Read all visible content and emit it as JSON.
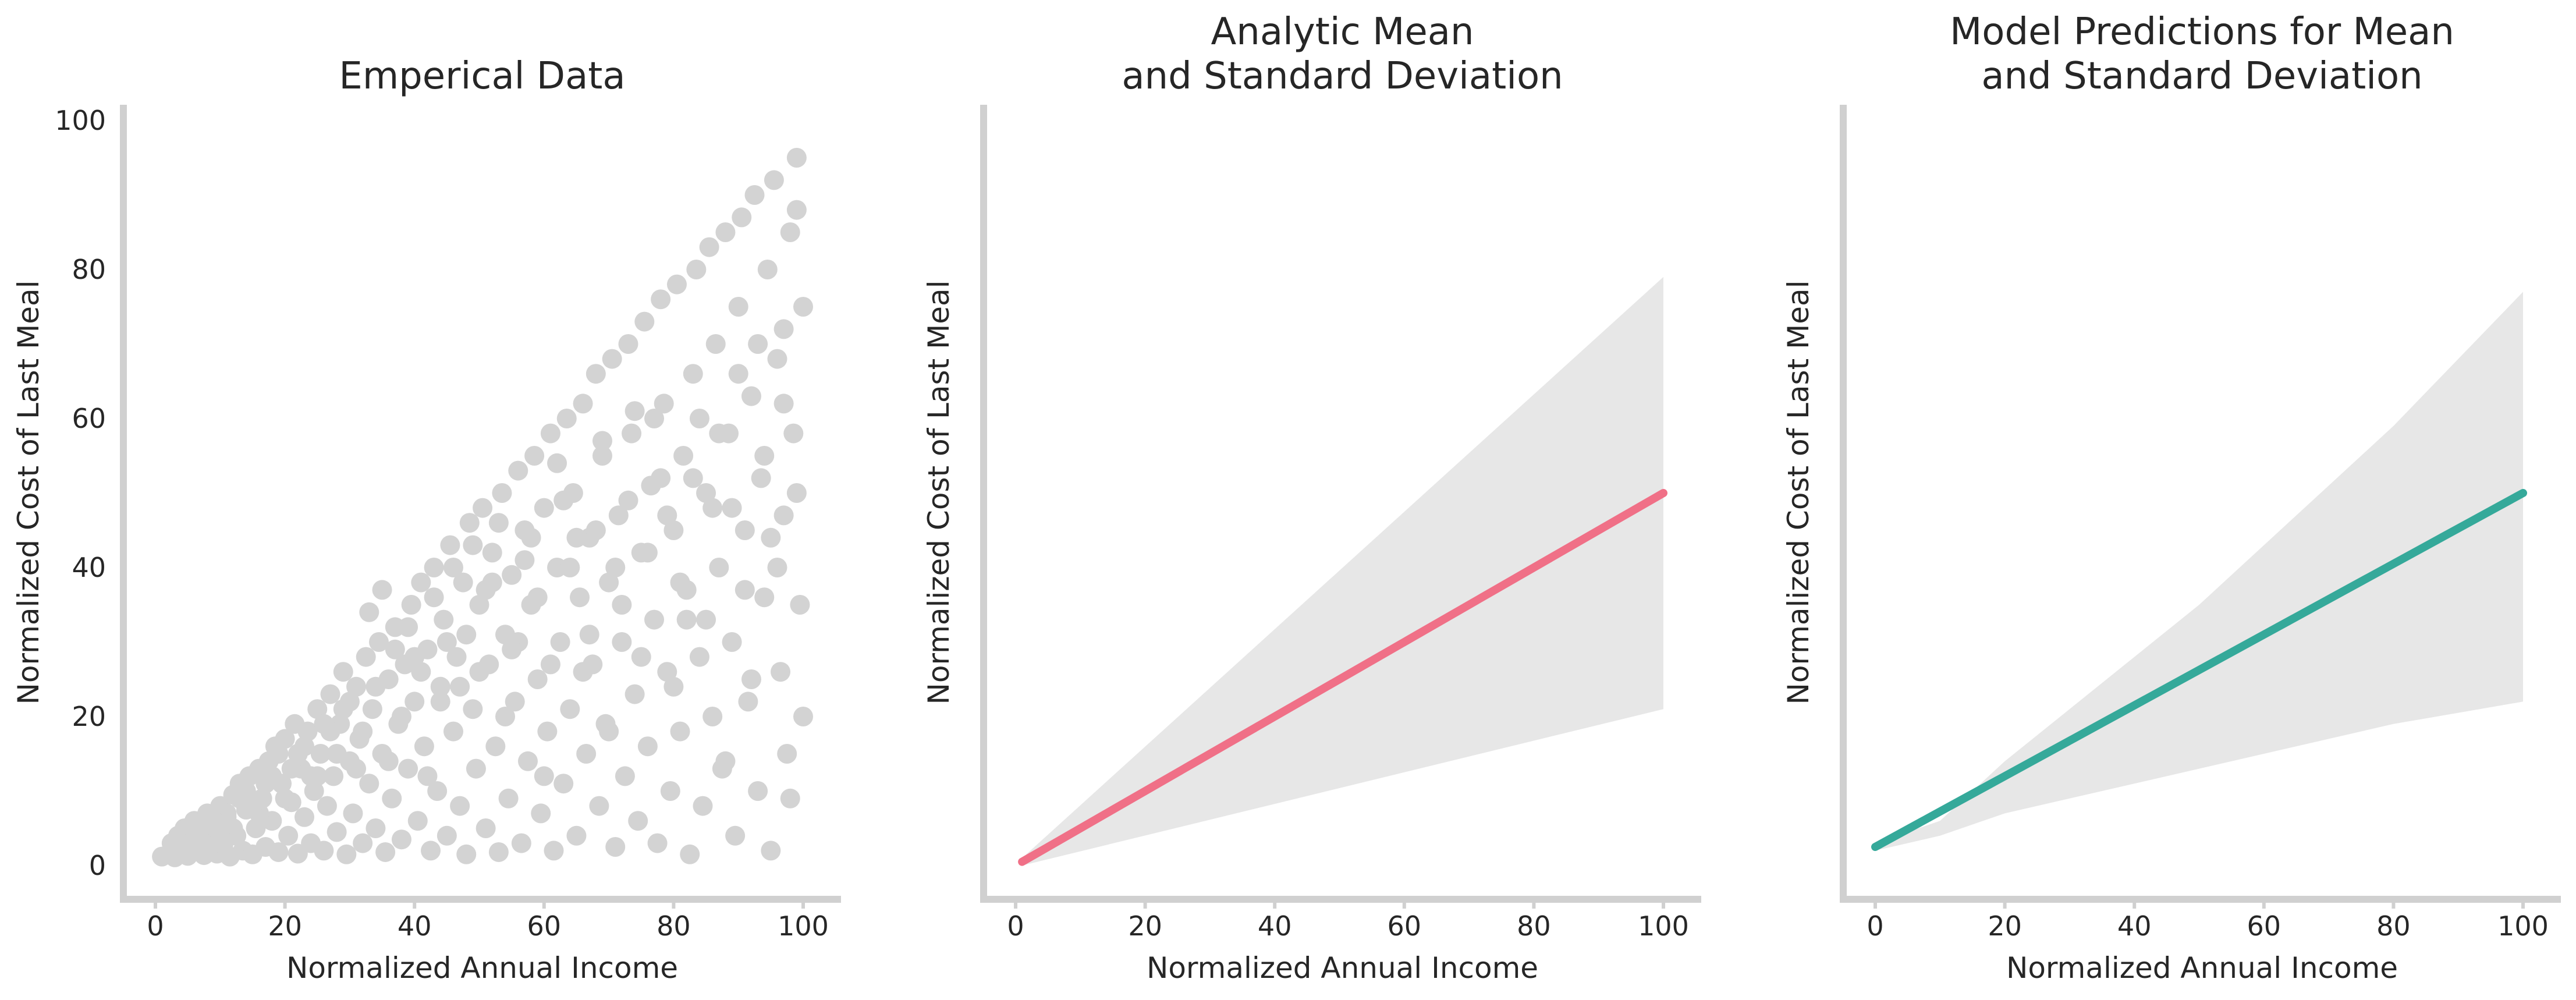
{
  "colors": {
    "scatter": "#d3d3d3",
    "band": "#e7e7e7",
    "analytic_mean": "#f07087",
    "model_mean": "#35a99a",
    "spine": "#d0d0d0"
  },
  "chart_data": [
    {
      "type": "scatter",
      "title": [
        "Emperical Data"
      ],
      "xlabel": "Normalized Annual Income",
      "ylabel": "Normalized Cost of Last Meal",
      "xlim": [
        -5,
        105
      ],
      "ylim": [
        -5,
        102
      ],
      "xticks": [
        0,
        20,
        40,
        60,
        80,
        100
      ],
      "yticks": [
        0,
        20,
        40,
        60,
        80,
        100
      ],
      "grid": false,
      "points": [
        [
          1,
          1.2
        ],
        [
          2,
          1.5
        ],
        [
          2.5,
          3
        ],
        [
          3,
          1.1
        ],
        [
          3.5,
          4
        ],
        [
          4,
          2
        ],
        [
          4.5,
          5
        ],
        [
          5,
          1.3
        ],
        [
          5.5,
          3.5
        ],
        [
          6,
          6
        ],
        [
          6.5,
          2.2
        ],
        [
          7,
          4.5
        ],
        [
          7.5,
          1.4
        ],
        [
          8,
          7
        ],
        [
          8.5,
          3
        ],
        [
          9,
          5.5
        ],
        [
          9.5,
          1.6
        ],
        [
          10,
          8
        ],
        [
          10.5,
          2.8
        ],
        [
          11,
          6.5
        ],
        [
          11.5,
          1.2
        ],
        [
          12,
          9.5
        ],
        [
          12.5,
          4
        ],
        [
          13,
          11
        ],
        [
          13.5,
          2
        ],
        [
          14,
          7.5
        ],
        [
          14.5,
          12
        ],
        [
          15,
          1.5
        ],
        [
          15.5,
          5
        ],
        [
          16,
          13
        ],
        [
          16.5,
          9
        ],
        [
          17,
          2.5
        ],
        [
          17.5,
          14
        ],
        [
          18,
          6
        ],
        [
          18.5,
          16
        ],
        [
          19,
          1.8
        ],
        [
          19.5,
          11
        ],
        [
          20,
          17
        ],
        [
          20.5,
          4
        ],
        [
          21,
          8.5
        ],
        [
          21.5,
          19
        ],
        [
          22,
          1.6
        ],
        [
          22.5,
          13
        ],
        [
          23,
          6.5
        ],
        [
          23.5,
          18
        ],
        [
          24,
          3
        ],
        [
          24.5,
          10
        ],
        [
          25,
          21
        ],
        [
          25.5,
          15
        ],
        [
          26,
          2
        ],
        [
          26.5,
          8
        ],
        [
          27,
          23
        ],
        [
          27.5,
          12
        ],
        [
          28,
          4.5
        ],
        [
          28.5,
          19
        ],
        [
          29,
          26
        ],
        [
          29.5,
          1.5
        ],
        [
          30,
          14
        ],
        [
          30.5,
          7
        ],
        [
          31,
          24
        ],
        [
          31.5,
          17
        ],
        [
          32,
          3
        ],
        [
          32.5,
          28
        ],
        [
          33,
          11
        ],
        [
          33.5,
          21
        ],
        [
          34,
          5
        ],
        [
          34.5,
          30
        ],
        [
          35,
          15
        ],
        [
          35.5,
          1.8
        ],
        [
          36,
          25
        ],
        [
          36.5,
          9
        ],
        [
          37,
          32
        ],
        [
          37.5,
          19
        ],
        [
          38,
          3.5
        ],
        [
          38.5,
          27
        ],
        [
          39,
          13
        ],
        [
          39.5,
          35
        ],
        [
          40,
          22
        ],
        [
          40.5,
          6
        ],
        [
          41,
          38
        ],
        [
          41.5,
          16
        ],
        [
          42,
          29
        ],
        [
          42.5,
          2
        ],
        [
          43,
          40
        ],
        [
          43.5,
          10
        ],
        [
          44,
          24
        ],
        [
          44.5,
          33
        ],
        [
          45,
          4
        ],
        [
          45.5,
          43
        ],
        [
          46,
          18
        ],
        [
          46.5,
          28
        ],
        [
          47,
          8
        ],
        [
          47.5,
          38
        ],
        [
          48,
          1.5
        ],
        [
          48.5,
          46
        ],
        [
          49,
          21
        ],
        [
          49.5,
          13
        ],
        [
          50,
          35
        ],
        [
          50.5,
          48
        ],
        [
          51,
          5
        ],
        [
          51.5,
          27
        ],
        [
          52,
          42
        ],
        [
          52.5,
          16
        ],
        [
          53,
          1.8
        ],
        [
          53.5,
          50
        ],
        [
          54,
          31
        ],
        [
          54.5,
          9
        ],
        [
          55,
          39
        ],
        [
          55.5,
          22
        ],
        [
          56,
          53
        ],
        [
          56.5,
          3
        ],
        [
          57,
          45
        ],
        [
          57.5,
          14
        ],
        [
          58,
          35
        ],
        [
          58.5,
          55
        ],
        [
          59,
          25
        ],
        [
          59.5,
          7
        ],
        [
          60,
          48
        ],
        [
          60.5,
          18
        ],
        [
          61,
          58
        ],
        [
          61.5,
          2
        ],
        [
          62,
          40
        ],
        [
          62.5,
          30
        ],
        [
          63,
          11
        ],
        [
          63.5,
          60
        ],
        [
          64,
          21
        ],
        [
          64.5,
          50
        ],
        [
          65,
          4
        ],
        [
          65.5,
          36
        ],
        [
          66,
          62
        ],
        [
          66.5,
          15
        ],
        [
          67,
          44
        ],
        [
          67.5,
          27
        ],
        [
          68,
          66
        ],
        [
          68.5,
          8
        ],
        [
          69,
          55
        ],
        [
          69.5,
          19
        ],
        [
          70,
          38
        ],
        [
          70.5,
          68
        ],
        [
          71,
          2.5
        ],
        [
          71.5,
          47
        ],
        [
          72,
          30
        ],
        [
          72.5,
          12
        ],
        [
          73,
          70
        ],
        [
          73.5,
          58
        ],
        [
          74,
          23
        ],
        [
          74.5,
          6
        ],
        [
          75,
          42
        ],
        [
          75.5,
          73
        ],
        [
          76,
          16
        ],
        [
          76.5,
          51
        ],
        [
          77,
          33
        ],
        [
          77.5,
          3
        ],
        [
          78,
          76
        ],
        [
          78.5,
          62
        ],
        [
          79,
          26
        ],
        [
          79.5,
          10
        ],
        [
          80,
          45
        ],
        [
          80.5,
          78
        ],
        [
          81,
          18
        ],
        [
          81.5,
          55
        ],
        [
          82,
          37
        ],
        [
          82.5,
          1.5
        ],
        [
          83,
          66
        ],
        [
          83.5,
          80
        ],
        [
          84,
          28
        ],
        [
          84.5,
          8
        ],
        [
          85,
          50
        ],
        [
          85.5,
          83
        ],
        [
          86,
          20
        ],
        [
          86.5,
          70
        ],
        [
          87,
          40
        ],
        [
          87.5,
          13
        ],
        [
          88,
          85
        ],
        [
          88.5,
          58
        ],
        [
          89,
          30
        ],
        [
          89.5,
          4
        ],
        [
          90,
          75
        ],
        [
          90.5,
          87
        ],
        [
          91,
          45
        ],
        [
          91.5,
          22
        ],
        [
          92,
          63
        ],
        [
          92.5,
          90
        ],
        [
          93,
          10
        ],
        [
          93.5,
          52
        ],
        [
          94,
          36
        ],
        [
          94.5,
          80
        ],
        [
          95,
          2
        ],
        [
          95.5,
          92
        ],
        [
          96,
          68
        ],
        [
          96.5,
          26
        ],
        [
          97,
          47
        ],
        [
          97.5,
          15
        ],
        [
          98,
          85
        ],
        [
          98.5,
          58
        ],
        [
          99,
          95
        ],
        [
          99.5,
          35
        ],
        [
          100,
          75
        ],
        [
          100,
          20
        ],
        [
          99,
          88
        ],
        [
          98,
          9
        ],
        [
          97,
          62
        ],
        [
          96,
          40
        ],
        [
          94,
          55
        ],
        [
          92,
          25
        ],
        [
          90,
          66
        ],
        [
          88,
          14
        ],
        [
          86,
          48
        ],
        [
          84,
          60
        ],
        [
          82,
          33
        ],
        [
          80,
          24
        ],
        [
          78,
          52
        ],
        [
          76,
          42
        ],
        [
          74,
          61
        ],
        [
          72,
          35
        ],
        [
          70,
          18
        ],
        [
          68,
          45
        ],
        [
          66,
          26
        ],
        [
          64,
          40
        ],
        [
          62,
          54
        ],
        [
          60,
          12
        ],
        [
          58,
          44
        ],
        [
          56,
          30
        ],
        [
          54,
          20
        ],
        [
          52,
          38
        ],
        [
          50,
          26
        ],
        [
          48,
          31
        ],
        [
          46,
          40
        ],
        [
          44,
          22
        ],
        [
          42,
          12
        ],
        [
          40,
          28
        ],
        [
          38,
          20
        ],
        [
          36,
          14
        ],
        [
          34,
          24
        ],
        [
          32,
          18
        ],
        [
          30,
          22
        ],
        [
          28,
          15
        ],
        [
          26,
          19
        ],
        [
          24,
          12
        ],
        [
          22,
          15
        ],
        [
          20,
          9
        ],
        [
          18,
          12
        ],
        [
          16,
          7
        ],
        [
          14,
          10
        ],
        [
          12,
          5
        ],
        [
          10,
          4
        ],
        [
          8,
          5.5
        ],
        [
          6,
          3.5
        ],
        [
          4,
          3
        ],
        [
          33,
          34
        ],
        [
          35,
          37
        ],
        [
          37,
          29
        ],
        [
          39,
          32
        ],
        [
          41,
          26
        ],
        [
          43,
          36
        ],
        [
          45,
          30
        ],
        [
          47,
          24
        ],
        [
          49,
          43
        ],
        [
          51,
          37
        ],
        [
          53,
          46
        ],
        [
          55,
          29
        ],
        [
          57,
          41
        ],
        [
          59,
          36
        ],
        [
          61,
          27
        ],
        [
          63,
          49
        ],
        [
          65,
          44
        ],
        [
          67,
          31
        ],
        [
          69,
          57
        ],
        [
          71,
          40
        ],
        [
          73,
          49
        ],
        [
          75,
          28
        ],
        [
          77,
          60
        ],
        [
          79,
          47
        ],
        [
          81,
          38
        ],
        [
          83,
          52
        ],
        [
          85,
          33
        ],
        [
          87,
          58
        ],
        [
          89,
          48
        ],
        [
          91,
          37
        ],
        [
          93,
          70
        ],
        [
          95,
          44
        ],
        [
          97,
          72
        ],
        [
          99,
          50
        ],
        [
          21,
          13
        ],
        [
          23,
          16
        ],
        [
          25,
          12
        ],
        [
          27,
          18
        ],
        [
          29,
          21
        ],
        [
          31,
          13
        ],
        [
          19,
          15
        ],
        [
          17,
          11
        ],
        [
          15,
          8
        ],
        [
          13,
          9
        ],
        [
          11,
          7
        ],
        [
          9,
          6
        ]
      ]
    },
    {
      "type": "line",
      "title": [
        "Analytic Mean",
        "and Standard Deviation"
      ],
      "xlabel": "Normalized Annual Income",
      "ylabel": "Normalized Cost of Last Meal",
      "xlim": [
        -5,
        105
      ],
      "ylim": [
        -5,
        102
      ],
      "xticks": [
        0,
        20,
        40,
        60,
        80,
        100
      ],
      "yticks": [],
      "grid": false,
      "series": [
        {
          "x": [
            1,
            100
          ],
          "y": [
            0.5,
            50
          ],
          "color": "analytic_mean"
        }
      ],
      "band": {
        "x": [
          1,
          100
        ],
        "upper": [
          1,
          79
        ],
        "lower": [
          0,
          21
        ]
      }
    },
    {
      "type": "line",
      "title": [
        "Model Predictions for Mean",
        "and Standard Deviation"
      ],
      "xlabel": "Normalized Annual Income",
      "ylabel": "Normalized Cost of Last Meal",
      "xlim": [
        -5,
        105
      ],
      "ylim": [
        -5,
        102
      ],
      "xticks": [
        0,
        20,
        40,
        60,
        80,
        100
      ],
      "yticks": [],
      "grid": false,
      "series": [
        {
          "x": [
            0,
            100
          ],
          "y": [
            2.5,
            50
          ],
          "color": "model_mean"
        }
      ],
      "band": {
        "x": [
          0,
          10,
          20,
          30,
          40,
          50,
          60,
          70,
          80,
          90,
          100
        ],
        "upper": [
          3,
          6,
          14,
          21,
          28,
          35,
          43,
          51,
          59,
          68,
          77
        ],
        "lower": [
          2,
          4,
          7,
          9,
          11,
          13,
          15,
          17,
          19,
          20.5,
          22
        ]
      }
    }
  ]
}
